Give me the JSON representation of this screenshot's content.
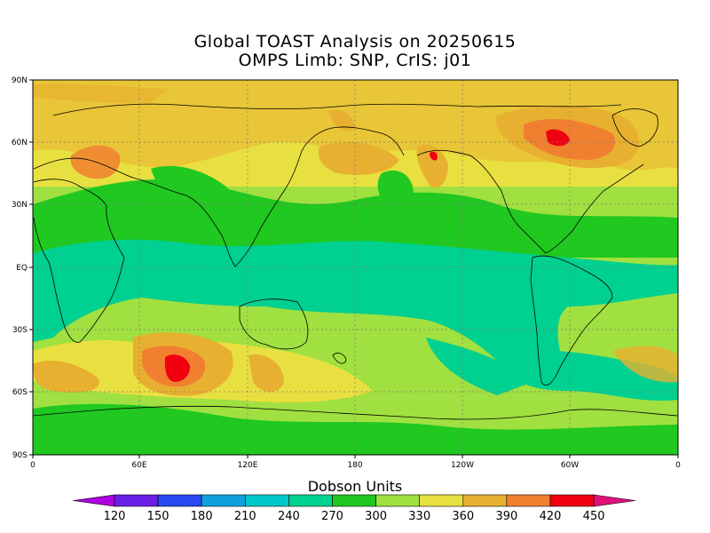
{
  "title_line1": "Global TOAST Analysis on 20250615",
  "title_line2": "OMPS Limb: SNP,  CrIS: j01",
  "lat_ticks": [
    "90N",
    "60N",
    "30N",
    "EQ",
    "30S",
    "60S",
    "90S"
  ],
  "lon_ticks": [
    "0",
    "60E",
    "120E",
    "180",
    "120W",
    "60W",
    "0"
  ],
  "colorbar": {
    "title": "Dobson Units",
    "labels": [
      "120",
      "150",
      "180",
      "210",
      "240",
      "270",
      "300",
      "330",
      "360",
      "390",
      "420",
      "450"
    ],
    "colors": [
      "#b000e0",
      "#6a1fe6",
      "#2848f0",
      "#10a0e0",
      "#00c8c8",
      "#00d090",
      "#20c820",
      "#a0e040",
      "#e8e040",
      "#e8b030",
      "#f08030",
      "#f00010",
      "#e0107a"
    ],
    "under_color": "#b000e0",
    "over_color": "#e0107a"
  },
  "map_colors": {
    "ocean_tropics": "#00d090",
    "green_band": "#20c820",
    "light_green": "#a0e040",
    "yellow": "#e8e040",
    "light_orange": "#e8b030",
    "orange": "#f08030",
    "red": "#f00010"
  }
}
